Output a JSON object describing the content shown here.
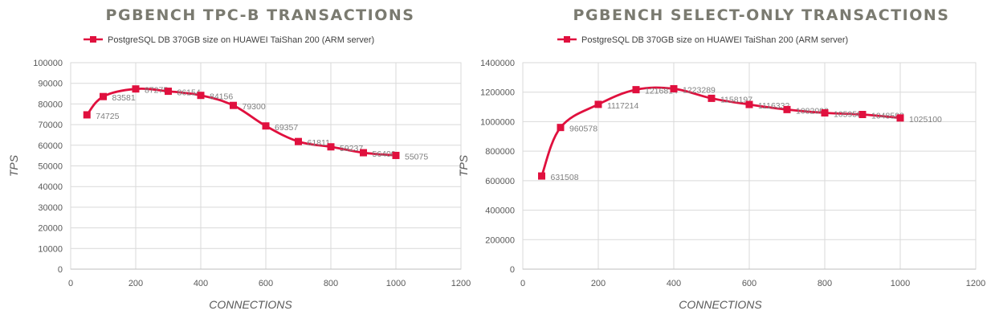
{
  "chart_data": [
    {
      "type": "line",
      "title": "PGBENCH TPC-B TRANSACTIONS",
      "xlabel": "CONNECTIONS",
      "ylabel": "TPS",
      "xlim": [
        0,
        1200
      ],
      "ylim": [
        0,
        100000
      ],
      "xticks": [
        0,
        200,
        400,
        600,
        800,
        1000,
        1200
      ],
      "yticks": [
        0,
        10000,
        20000,
        30000,
        40000,
        50000,
        60000,
        70000,
        80000,
        90000,
        100000
      ],
      "grid": true,
      "legend_position": "top",
      "color": "#e0103e",
      "series": [
        {
          "name": "PostgreSQL DB 370GB size on HUAWEI TaiShan 200 (ARM server)",
          "x": [
            50,
            100,
            200,
            300,
            400,
            500,
            600,
            700,
            800,
            900,
            1000
          ],
          "y": [
            74725,
            83581,
            87275,
            86154,
            84156,
            79300,
            69357,
            61811,
            59237,
            56400,
            55075
          ],
          "labels": [
            "74725",
            "83581",
            "87275",
            "86154",
            "84156",
            "79300",
            "69357",
            "61811",
            "59237",
            "56400",
            "55075"
          ]
        }
      ]
    },
    {
      "type": "line",
      "title": "PGBENCH SELECT-ONLY TRANSACTIONS",
      "xlabel": "CONNECTIONS",
      "ylabel": "TPS",
      "xlim": [
        0,
        1200
      ],
      "ylim": [
        0,
        1400000
      ],
      "xticks": [
        0,
        200,
        400,
        600,
        800,
        1000,
        1200
      ],
      "yticks": [
        0,
        200000,
        400000,
        600000,
        800000,
        1000000,
        1200000,
        1400000
      ],
      "grid": true,
      "legend_position": "top",
      "color": "#e0103e",
      "series": [
        {
          "name": "PostgreSQL DB 370GB size on HUAWEI TaiShan 200 (ARM server)",
          "x": [
            50,
            100,
            200,
            300,
            400,
            500,
            600,
            700,
            800,
            900,
            1000
          ],
          "y": [
            631508,
            960578,
            1117214,
            1216814,
            1223289,
            1158197,
            1116332,
            1082096,
            1059585,
            1048593,
            1025100
          ],
          "labels": [
            "631508",
            "960578",
            "1117214",
            "1216814",
            "1223289",
            "1158197",
            "1116332",
            "1082096",
            "1059585",
            "1048593",
            "1025100"
          ]
        }
      ]
    }
  ]
}
